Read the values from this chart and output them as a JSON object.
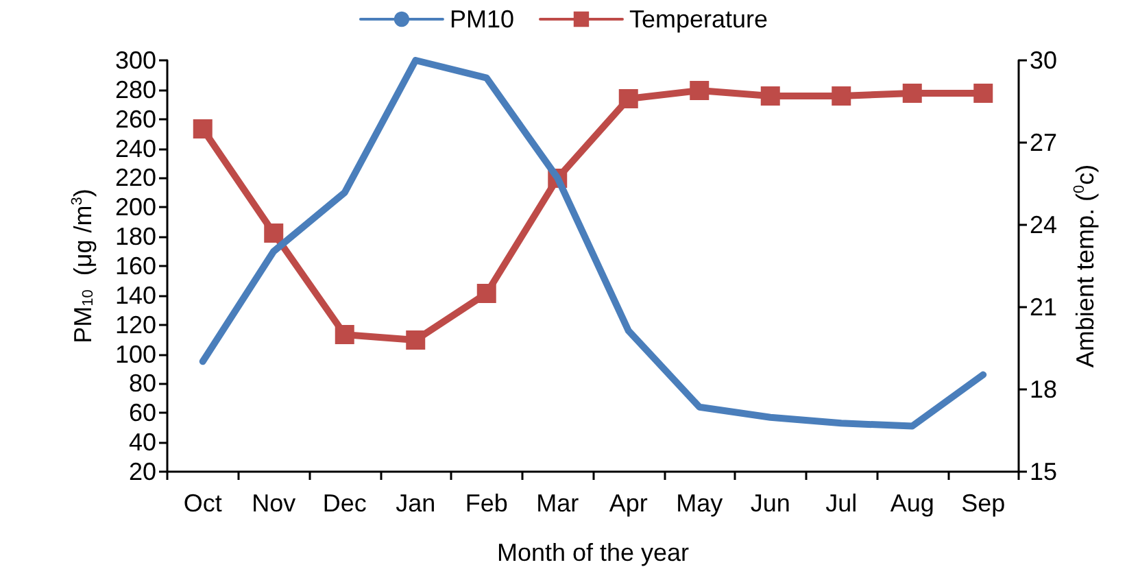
{
  "chart_data": {
    "type": "line",
    "xlabel": "Month of the year",
    "ylabel": "PM$_{10}$  (μg /m$^{3}$)",
    "y2label": "Ambient temp. ($^{0}$c)",
    "categories": [
      "Oct",
      "Nov",
      "Dec",
      "Jan",
      "Feb",
      "Mar",
      "Apr",
      "May",
      "Jun",
      "Jul",
      "Aug",
      "Sep"
    ],
    "series": [
      {
        "name": "PM10",
        "color": "#4a7ebb",
        "marker": "none",
        "values": [
          95,
          170,
          210,
          300,
          288,
          220,
          116,
          64,
          57,
          53,
          51,
          86
        ]
      },
      {
        "name": "Temperature",
        "color": "#be4b48",
        "marker": "square",
        "axis": "y2",
        "values": [
          27.5,
          23.7,
          20.0,
          19.8,
          21.5,
          25.7,
          28.6,
          28.9,
          28.7,
          28.7,
          28.8,
          28.8
        ]
      }
    ],
    "ylim": [
      20,
      300
    ],
    "yticks": [
      20,
      40,
      60,
      80,
      100,
      120,
      140,
      160,
      180,
      200,
      220,
      240,
      260,
      280,
      300
    ],
    "y2lim": [
      15,
      30
    ],
    "y2ticks": [
      15,
      18,
      21,
      24,
      27,
      30
    ],
    "grid": false,
    "legend": "top",
    "line_style": "solid"
  }
}
